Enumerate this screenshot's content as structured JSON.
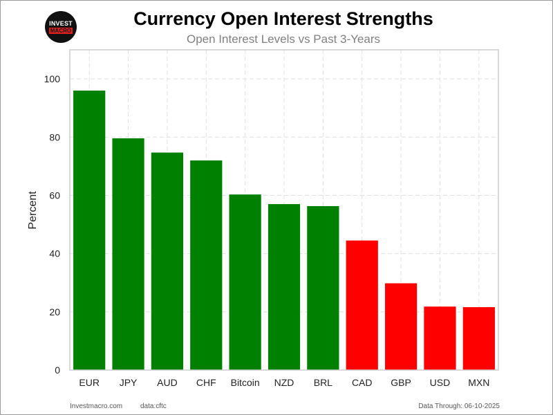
{
  "logo": {
    "top": "INVEST",
    "bottom": "MACRO"
  },
  "footer": {
    "site": "Investmacro.com",
    "source": "data:cftc",
    "date_note": "Data Through: 06-10-2025"
  },
  "colors": {
    "positive": "#008000",
    "negative": "#ff0000",
    "grid": "#e0e0e0",
    "axis_frame": "#cccccc"
  },
  "chart_data": {
    "type": "bar",
    "title": "Currency Open Interest Strengths",
    "subtitle": "Open Interest Levels vs Past 3-Years",
    "xlabel": "",
    "ylabel": "Percent",
    "ylim": [
      0,
      110
    ],
    "yticks": [
      0,
      20,
      40,
      60,
      80,
      100
    ],
    "grid": true,
    "categories": [
      "EUR",
      "JPY",
      "AUD",
      "CHF",
      "Bitcoin",
      "NZD",
      "BRL",
      "CAD",
      "GBP",
      "USD",
      "MXN"
    ],
    "values": [
      96,
      79.6,
      74.7,
      72,
      60.3,
      57,
      56.3,
      44.5,
      29.8,
      21.8,
      21.6
    ],
    "bar_colors": [
      "green",
      "green",
      "green",
      "green",
      "green",
      "green",
      "green",
      "red",
      "red",
      "red",
      "red"
    ]
  }
}
